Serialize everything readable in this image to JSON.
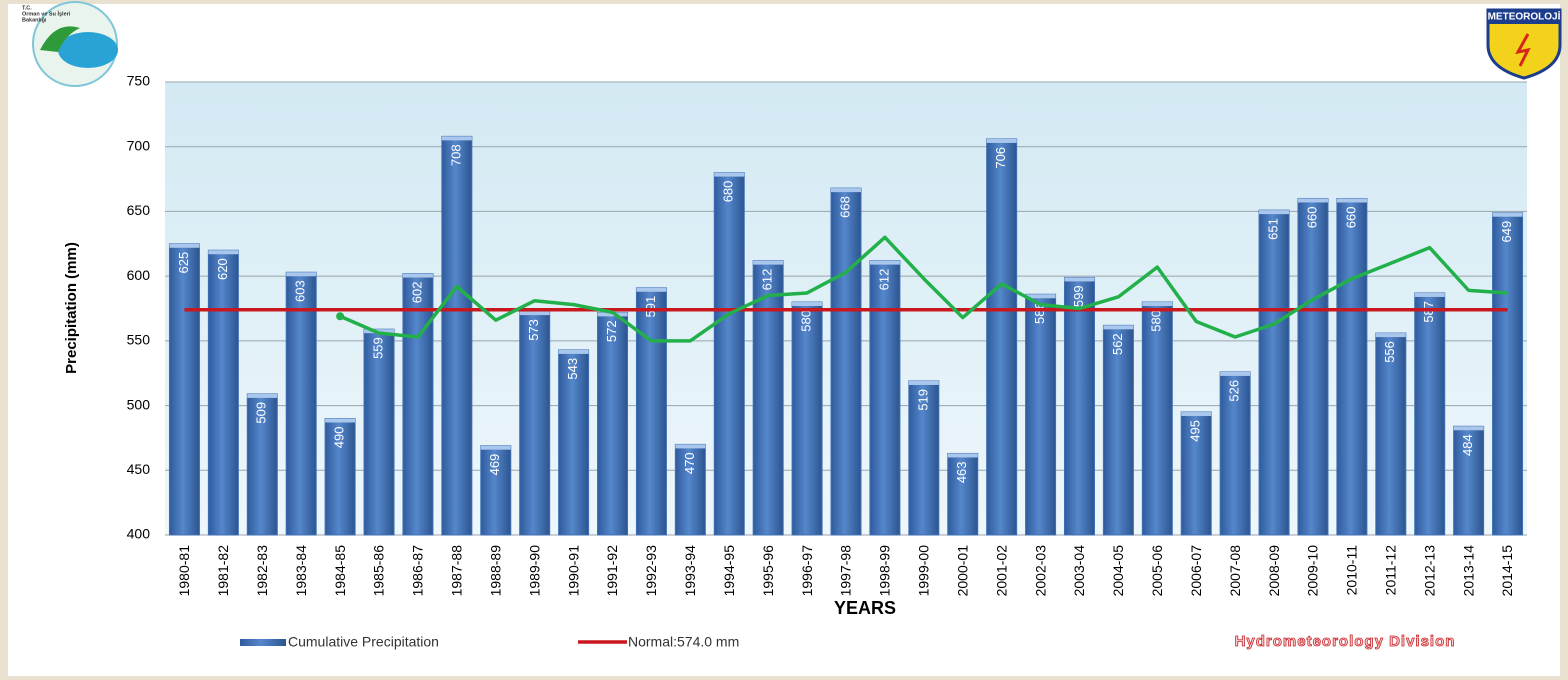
{
  "chart_data": {
    "type": "bar",
    "y_label": "Precipitation (mm)",
    "x_label": "YEARS",
    "credit": "Hydrometeorology Division",
    "logo_left_lines": [
      "T.C.",
      "Orman ve Su İşleri",
      "Bakanlığı"
    ],
    "logo_right": "METEOROLOJİ",
    "categories": [
      "1980-81",
      "1981-82",
      "1982-83",
      "1983-84",
      "1984-85",
      "1985-86",
      "1986-87",
      "1987-88",
      "1988-89",
      "1989-90",
      "1990-91",
      "1991-92",
      "1992-93",
      "1993-94",
      "1994-95",
      "1995-96",
      "1996-97",
      "1997-98",
      "1998-99",
      "1999-00",
      "2000-01",
      "2001-02",
      "2002-03",
      "2003-04",
      "2004-05",
      "2005-06",
      "2006-07",
      "2007-08",
      "2008-09",
      "2009-10",
      "2010-11",
      "2011-12",
      "2012-13",
      "2013-14",
      "2014-15"
    ],
    "series": [
      {
        "name": "Cumulative Precipitation",
        "color": "#3f70b5",
        "values": [
          625,
          620,
          509,
          603,
          490,
          559,
          602,
          708,
          469,
          573,
          543,
          572,
          591,
          470,
          680,
          612,
          580,
          668,
          612,
          519,
          463,
          706,
          586,
          599,
          562,
          580,
          495,
          526,
          651,
          660,
          660,
          556,
          587,
          484,
          649
        ]
      },
      {
        "type": "line",
        "color": "#22b04a",
        "values": [
          null,
          null,
          null,
          null,
          569,
          556,
          553,
          592,
          566,
          581,
          578,
          572,
          550,
          550,
          571,
          585,
          587,
          603,
          630,
          598,
          568,
          594,
          578,
          575,
          584,
          607,
          565,
          553,
          563,
          582,
          598,
          610,
          622,
          589,
          587
        ]
      }
    ],
    "normal": {
      "name": "Normal:574.0 mm",
      "value": 574,
      "color": "#c8181e"
    },
    "ylim": [
      400,
      750
    ],
    "yticks": [
      400,
      450,
      500,
      550,
      600,
      650,
      700,
      750
    ],
    "grid": true
  }
}
